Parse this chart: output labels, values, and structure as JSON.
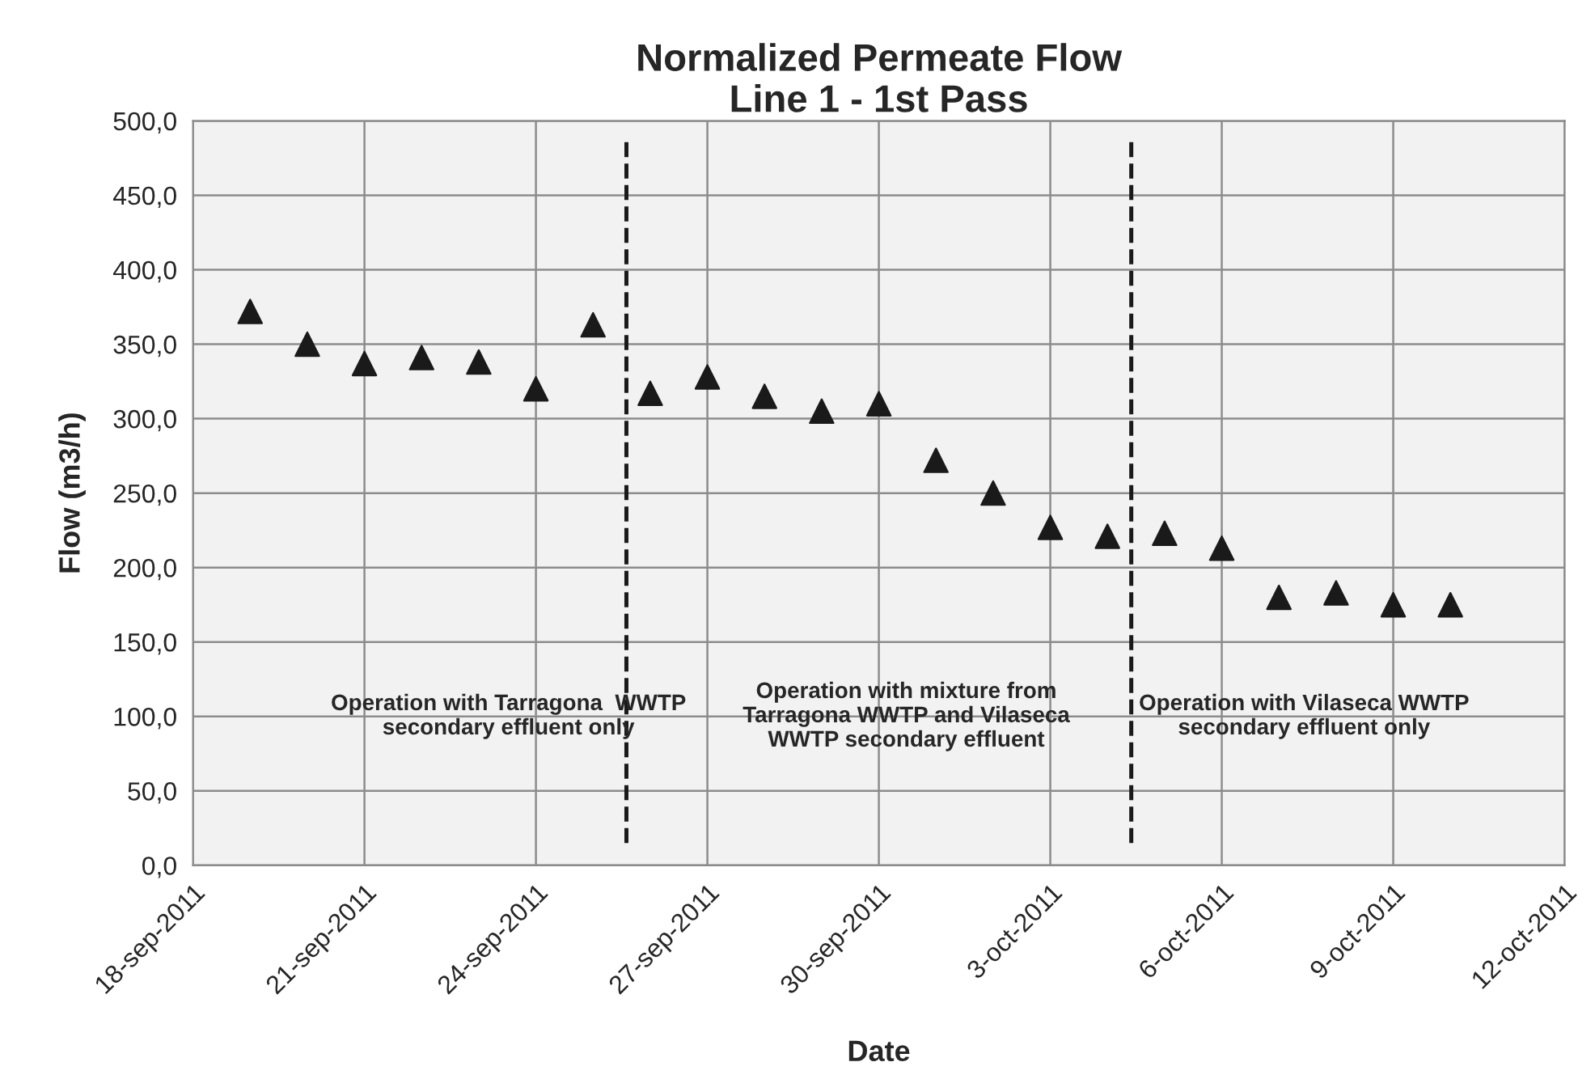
{
  "chart_data": {
    "type": "scatter",
    "title": "Normalized Permeate Flow\nLine 1 - 1st Pass",
    "xlabel": "Date",
    "ylabel": "Flow (m3/h)",
    "x": [
      "2011-09-19",
      "2011-09-20",
      "2011-09-21",
      "2011-09-22",
      "2011-09-23",
      "2011-09-24",
      "2011-09-25",
      "2011-09-26",
      "2011-09-27",
      "2011-09-28",
      "2011-09-29",
      "2011-09-30",
      "2011-10-01",
      "2011-10-02",
      "2011-10-03",
      "2011-10-04",
      "2011-10-05",
      "2011-10-06",
      "2011-10-07",
      "2011-10-08",
      "2011-10-09",
      "2011-10-10"
    ],
    "series": [
      {
        "color": "#1a1a1a",
        "values": [
          372,
          350,
          337,
          341,
          338,
          320,
          363,
          317,
          328,
          315,
          305,
          310,
          272,
          250,
          227,
          221,
          223,
          213,
          180,
          183,
          175,
          175
        ]
      }
    ],
    "marker": "triangle",
    "xlim": [
      "2011-09-18",
      "2011-10-12"
    ],
    "xticks": [
      {
        "value": "2011-09-18",
        "label": "18-sep-2011"
      },
      {
        "value": "2011-09-21",
        "label": "21-sep-2011"
      },
      {
        "value": "2011-09-24",
        "label": "24-sep-2011"
      },
      {
        "value": "2011-09-27",
        "label": "27-sep-2011"
      },
      {
        "value": "2011-09-30",
        "label": "30-sep-2011"
      },
      {
        "value": "2011-10-03",
        "label": "3-oct-2011"
      },
      {
        "value": "2011-10-06",
        "label": "6-oct-2011"
      },
      {
        "value": "2011-10-09",
        "label": "9-oct-2011"
      },
      {
        "value": "2011-10-12",
        "label": "12-oct-2011"
      }
    ],
    "ylim": [
      0,
      500
    ],
    "yticks": [
      {
        "value": 0,
        "label": "0,0"
      },
      {
        "value": 50,
        "label": "50,0"
      },
      {
        "value": 100,
        "label": "100,0"
      },
      {
        "value": 150,
        "label": "150,0"
      },
      {
        "value": 200,
        "label": "200,0"
      },
      {
        "value": 250,
        "label": "250,0"
      },
      {
        "value": 300,
        "label": "300,0"
      },
      {
        "value": 350,
        "label": "350,0"
      },
      {
        "value": 400,
        "label": "400,0"
      },
      {
        "value": 450,
        "label": "450,0"
      },
      {
        "value": 500,
        "label": "500,0"
      }
    ],
    "grid": true,
    "ref_lines": [
      {
        "axis": "x",
        "value": "2011-09-25T14:00",
        "color": "#1a1a1a",
        "line_style": "dashed"
      },
      {
        "axis": "x",
        "value": "2011-10-04T10:00",
        "color": "#1a1a1a",
        "line_style": "dashed"
      }
    ],
    "annotations": [
      "Operation with Tarragona  WWTP\nsecondary effluent only",
      "Operation with mixture from\nTarragona WWTP and Vilaseca\nWWTP secondary effluent",
      "Operation with Vilaseca WWTP\nsecondary effluent only"
    ]
  }
}
